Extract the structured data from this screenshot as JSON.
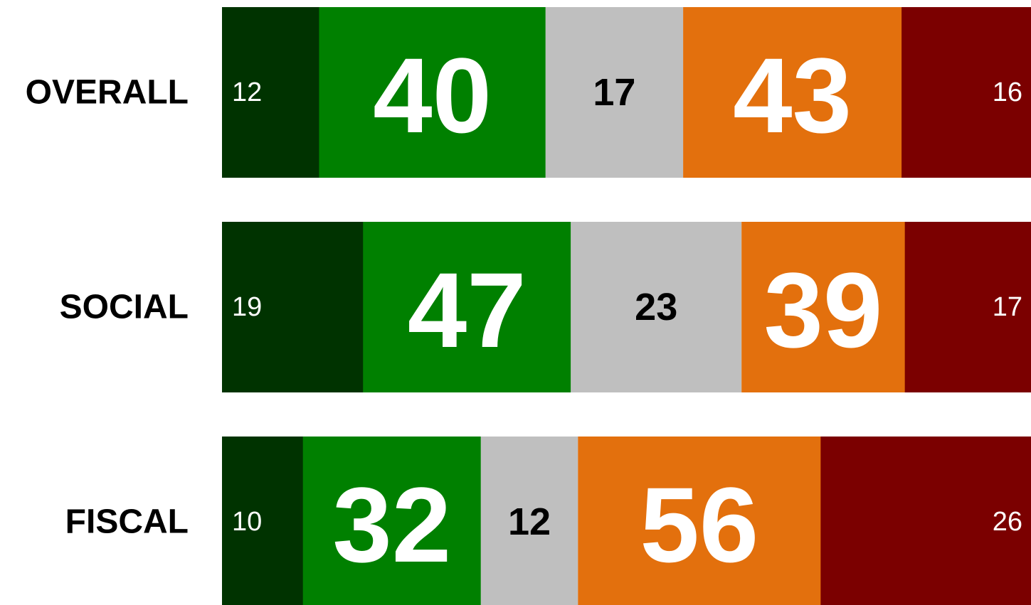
{
  "chart_data": {
    "type": "bar",
    "orientation": "horizontal",
    "categories": [
      "OVERALL",
      "SOCIAL",
      "FISCAL"
    ],
    "series": [
      {
        "color": "#003300",
        "values": [
          12,
          19,
          10
        ]
      },
      {
        "color": "#008000",
        "values": [
          40,
          47,
          32
        ]
      },
      {
        "color": "#bfbfbf",
        "values": [
          17,
          23,
          12
        ]
      },
      {
        "color": "#e3700d",
        "values": [
          43,
          39,
          56
        ]
      },
      {
        "color": "#7b0000",
        "values": [
          16,
          17,
          26
        ]
      }
    ]
  }
}
